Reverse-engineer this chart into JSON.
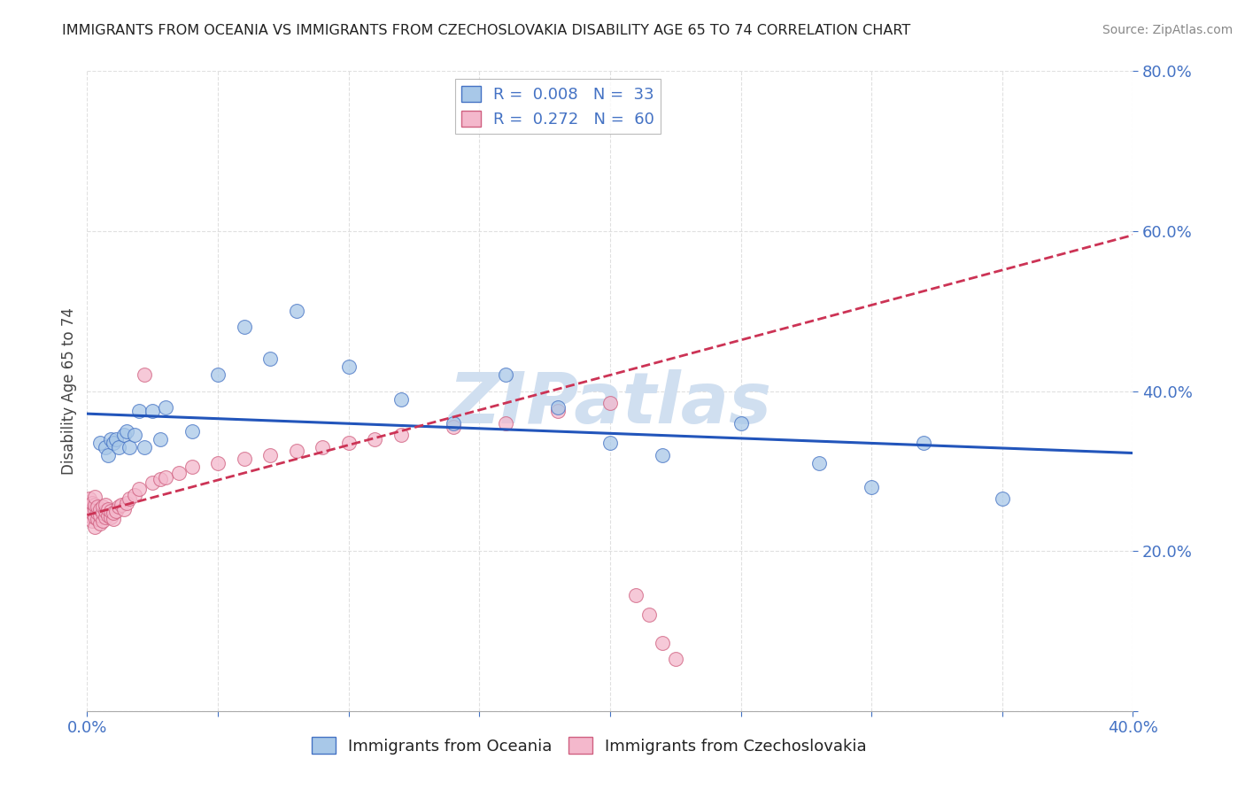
{
  "title": "IMMIGRANTS FROM OCEANIA VS IMMIGRANTS FROM CZECHOSLOVAKIA DISABILITY AGE 65 TO 74 CORRELATION CHART",
  "source": "Source: ZipAtlas.com",
  "ylabel": "Disability Age 65 to 74",
  "xlim": [
    0.0,
    0.4
  ],
  "ylim": [
    0.0,
    0.8
  ],
  "legend_r1": "R =  0.008",
  "legend_n1": "N =  33",
  "legend_r2": "R =  0.272",
  "legend_n2": "N =  60",
  "series1_color": "#a8c8e8",
  "series1_edge": "#4472c4",
  "series2_color": "#f4b8cc",
  "series2_edge": "#d06080",
  "trend1_color": "#2255bb",
  "trend2_color": "#cc3355",
  "watermark": "ZIPatlas",
  "watermark_color": "#d0dff0",
  "background": "#ffffff",
  "grid_color": "#dddddd",
  "oceania_x": [
    0.005,
    0.007,
    0.008,
    0.009,
    0.01,
    0.011,
    0.012,
    0.014,
    0.015,
    0.016,
    0.018,
    0.02,
    0.022,
    0.025,
    0.028,
    0.03,
    0.04,
    0.05,
    0.06,
    0.07,
    0.08,
    0.1,
    0.12,
    0.14,
    0.16,
    0.18,
    0.2,
    0.22,
    0.25,
    0.28,
    0.3,
    0.32,
    0.35
  ],
  "oceania_y": [
    0.335,
    0.33,
    0.32,
    0.34,
    0.335,
    0.34,
    0.33,
    0.345,
    0.35,
    0.33,
    0.345,
    0.375,
    0.33,
    0.375,
    0.34,
    0.38,
    0.35,
    0.42,
    0.48,
    0.44,
    0.5,
    0.43,
    0.39,
    0.36,
    0.42,
    0.38,
    0.335,
    0.32,
    0.36,
    0.31,
    0.28,
    0.335,
    0.265
  ],
  "czech_x": [
    0.001,
    0.001,
    0.001,
    0.002,
    0.002,
    0.002,
    0.002,
    0.003,
    0.003,
    0.003,
    0.003,
    0.003,
    0.004,
    0.004,
    0.004,
    0.005,
    0.005,
    0.005,
    0.006,
    0.006,
    0.006,
    0.007,
    0.007,
    0.007,
    0.008,
    0.008,
    0.009,
    0.009,
    0.01,
    0.01,
    0.011,
    0.012,
    0.013,
    0.014,
    0.015,
    0.016,
    0.018,
    0.02,
    0.022,
    0.025,
    0.028,
    0.03,
    0.035,
    0.04,
    0.05,
    0.06,
    0.07,
    0.08,
    0.09,
    0.1,
    0.11,
    0.12,
    0.14,
    0.16,
    0.18,
    0.2,
    0.21,
    0.215,
    0.22,
    0.225
  ],
  "czech_y": [
    0.245,
    0.255,
    0.265,
    0.238,
    0.248,
    0.252,
    0.26,
    0.23,
    0.242,
    0.252,
    0.258,
    0.268,
    0.24,
    0.248,
    0.255,
    0.235,
    0.245,
    0.252,
    0.238,
    0.248,
    0.255,
    0.242,
    0.25,
    0.258,
    0.245,
    0.252,
    0.242,
    0.25,
    0.24,
    0.248,
    0.25,
    0.255,
    0.258,
    0.252,
    0.26,
    0.265,
    0.27,
    0.278,
    0.42,
    0.285,
    0.29,
    0.292,
    0.298,
    0.305,
    0.31,
    0.315,
    0.32,
    0.325,
    0.33,
    0.335,
    0.34,
    0.345,
    0.355,
    0.36,
    0.375,
    0.385,
    0.145,
    0.12,
    0.085,
    0.065
  ]
}
